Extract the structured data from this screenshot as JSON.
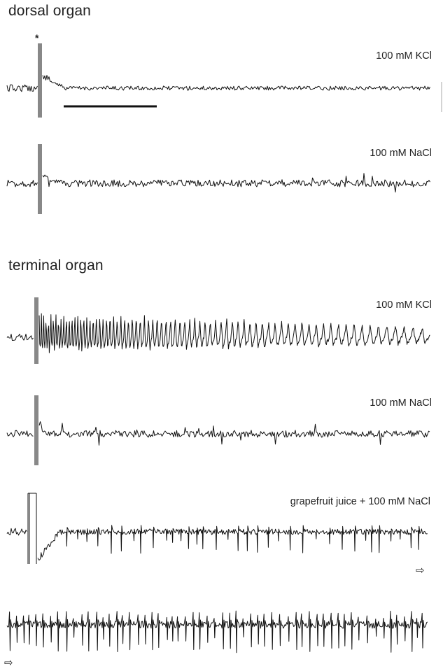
{
  "sections": {
    "dorsal": {
      "title": "dorsal organ"
    },
    "terminal": {
      "title": "terminal organ"
    }
  },
  "traces": [
    {
      "id": "dorsal-kcl",
      "label": "100 mM KCl",
      "response": "sustained-low",
      "spike_level": 0.0
    },
    {
      "id": "dorsal-nacl",
      "label": "100 mM NaCl",
      "response": "noise",
      "spike_level": 0.1
    },
    {
      "id": "terminal-kcl",
      "label": "100 mM KCl",
      "response": "strong-burst",
      "spike_level": 1.0
    },
    {
      "id": "terminal-nacl",
      "label": "100 mM NaCl",
      "response": "noise",
      "spike_level": 0.15
    },
    {
      "id": "terminal-grapefruit",
      "label": "grapefruit juice + 100 mM NaCl",
      "response": "delayed-spiking",
      "spike_level": 0.6
    },
    {
      "id": "terminal-grapefruit-cont",
      "label": "",
      "response": "continuous-spiking",
      "spike_level": 0.8
    }
  ],
  "stimulus_marker": "*",
  "continuation_arrow": "⇨"
}
